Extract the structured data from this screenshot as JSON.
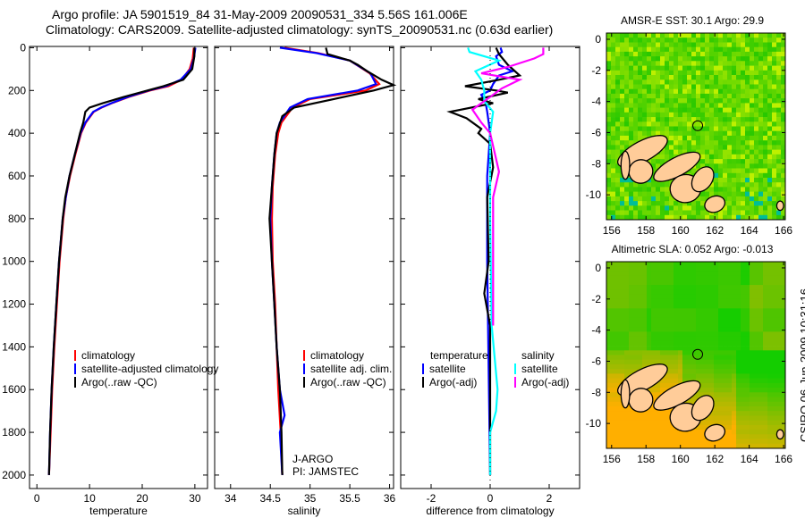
{
  "title_line1": "Argo profile: JA 5901519_84 31-May-2009 20090531_334 5.56S 161.006E",
  "title_line2": "Climatology: CARS2009. Satellite-adjusted climatology: synTS_20090531.nc (0.63d earlier)",
  "footer_stamp": "CSIRO 06-Jun-2009 10:31:16",
  "colors": {
    "climatology": "#ff0000",
    "satellite": "#0000ff",
    "argo": "#000000",
    "sal_satellite": "#00ffff",
    "sal_argo": "#ff00ff"
  },
  "chart_data": [
    {
      "type": "line",
      "xlabel": "temperature",
      "xlim": [
        -1.4,
        32.4
      ],
      "ylim": [
        -6,
        2063
      ],
      "y_inverted": true,
      "xticks": [
        0,
        10,
        20,
        30
      ],
      "yticks": [
        0,
        200,
        400,
        600,
        800,
        1000,
        1200,
        1400,
        1600,
        1800,
        2000
      ],
      "legend": [
        "climatology",
        "satellite-adjusted climatology",
        "Argo(..raw -QC)"
      ],
      "series": [
        {
          "name": "climatology",
          "color_key": "climatology",
          "points": [
            [
              29.8,
              0
            ],
            [
              29.6,
              50
            ],
            [
              29.0,
              100
            ],
            [
              27.5,
              150
            ],
            [
              25,
              180
            ],
            [
              21.5,
              200
            ],
            [
              17.5,
              230
            ],
            [
              14.2,
              260
            ],
            [
              12.3,
              280
            ],
            [
              10.8,
              300
            ],
            [
              9.3,
              350
            ],
            [
              8.4,
              400
            ],
            [
              7.3,
              500
            ],
            [
              6.3,
              600
            ],
            [
              5.5,
              700
            ],
            [
              5.0,
              800
            ],
            [
              4.3,
              1000
            ],
            [
              3.8,
              1200
            ],
            [
              3.3,
              1400
            ],
            [
              2.9,
              1600
            ],
            [
              2.6,
              1800
            ],
            [
              2.3,
              2000
            ]
          ]
        },
        {
          "name": "satellite-adjusted climatology",
          "color_key": "satellite",
          "points": [
            [
              30.1,
              0
            ],
            [
              29.8,
              50
            ],
            [
              29.2,
              100
            ],
            [
              27.3,
              150
            ],
            [
              24.5,
              180
            ],
            [
              21.2,
              200
            ],
            [
              17.3,
              230
            ],
            [
              14.1,
              260
            ],
            [
              12.2,
              280
            ],
            [
              10.7,
              300
            ],
            [
              9.2,
              350
            ],
            [
              8.3,
              400
            ],
            [
              7.2,
              500
            ],
            [
              6.2,
              600
            ],
            [
              5.5,
              700
            ],
            [
              4.9,
              800
            ],
            [
              4.2,
              1000
            ],
            [
              3.7,
              1200
            ],
            [
              3.2,
              1400
            ],
            [
              2.8,
              1600
            ],
            [
              2.5,
              1800
            ],
            [
              2.3,
              2000
            ]
          ]
        },
        {
          "name": "Argo(..raw -QC)",
          "color_key": "argo",
          "points": [
            [
              29.9,
              0
            ],
            [
              29.9,
              40
            ],
            [
              29.5,
              100
            ],
            [
              27.8,
              150
            ],
            [
              24,
              180
            ],
            [
              21,
              200
            ],
            [
              16.5,
              230
            ],
            [
              12.5,
              260
            ],
            [
              10.0,
              280
            ],
            [
              9.2,
              300
            ],
            [
              8.8,
              350
            ],
            [
              8.2,
              400
            ],
            [
              7.2,
              500
            ],
            [
              6.2,
              600
            ],
            [
              5.4,
              700
            ],
            [
              4.9,
              800
            ],
            [
              4.2,
              1000
            ],
            [
              3.7,
              1200
            ],
            [
              3.2,
              1400
            ],
            [
              2.8,
              1600
            ],
            [
              2.5,
              1800
            ],
            [
              2.3,
              2000
            ]
          ]
        }
      ]
    },
    {
      "type": "line",
      "xlabel": "salinity",
      "xlim": [
        33.8,
        36.05
      ],
      "ylim": [
        -6,
        2063
      ],
      "y_inverted": true,
      "xticks": [
        34,
        34.5,
        35,
        35.5,
        36
      ],
      "legend": [
        "climatology",
        "satellite adj. clim.",
        "Argo(..raw -QC)"
      ],
      "annotation": [
        "J-ARGO",
        "PI: JAMSTEC"
      ],
      "series": [
        {
          "name": "climatology",
          "color_key": "climatology",
          "points": [
            [
              34.68,
              0
            ],
            [
              35.1,
              25
            ],
            [
              35.5,
              60
            ],
            [
              35.75,
              120
            ],
            [
              35.87,
              170
            ],
            [
              35.7,
              200
            ],
            [
              35.0,
              240
            ],
            [
              34.78,
              280
            ],
            [
              34.64,
              350
            ],
            [
              34.6,
              400
            ],
            [
              34.56,
              500
            ],
            [
              34.53,
              650
            ],
            [
              34.52,
              800
            ],
            [
              34.53,
              1000
            ],
            [
              34.56,
              1200
            ],
            [
              34.58,
              1400
            ],
            [
              34.6,
              1600
            ],
            [
              34.63,
              1800
            ],
            [
              34.65,
              2000
            ]
          ]
        },
        {
          "name": "satellite adj. clim.",
          "color_key": "satellite",
          "points": [
            [
              34.62,
              0
            ],
            [
              35.08,
              25
            ],
            [
              35.5,
              60
            ],
            [
              35.76,
              120
            ],
            [
              35.83,
              170
            ],
            [
              35.6,
              200
            ],
            [
              34.97,
              240
            ],
            [
              34.75,
              280
            ],
            [
              34.62,
              350
            ],
            [
              34.58,
              400
            ],
            [
              34.55,
              500
            ],
            [
              34.52,
              650
            ],
            [
              34.5,
              800
            ],
            [
              34.52,
              1000
            ],
            [
              34.55,
              1200
            ],
            [
              34.58,
              1400
            ],
            [
              34.62,
              1600
            ],
            [
              34.68,
              1720
            ],
            [
              34.62,
              1800
            ],
            [
              34.65,
              2000
            ]
          ]
        },
        {
          "name": "Argo(..raw -QC)",
          "color_key": "argo",
          "points": [
            [
              35.2,
              0
            ],
            [
              35.22,
              30
            ],
            [
              35.5,
              60
            ],
            [
              35.6,
              80
            ],
            [
              35.72,
              110
            ],
            [
              35.9,
              150
            ],
            [
              36.05,
              175
            ],
            [
              35.8,
              200
            ],
            [
              35.3,
              240
            ],
            [
              34.8,
              280
            ],
            [
              34.65,
              320
            ],
            [
              34.58,
              400
            ],
            [
              34.55,
              500
            ],
            [
              34.52,
              650
            ],
            [
              34.49,
              800
            ],
            [
              34.52,
              1000
            ],
            [
              34.55,
              1200
            ],
            [
              34.58,
              1400
            ],
            [
              34.62,
              1600
            ],
            [
              34.64,
              1800
            ],
            [
              34.65,
              2000
            ]
          ]
        }
      ]
    },
    {
      "type": "line",
      "xlabel": "difference from climatology",
      "xlim": [
        -3.03,
        3.03
      ],
      "ylim": [
        -6,
        2063
      ],
      "y_inverted": true,
      "xticks": [
        -2,
        0,
        2
      ],
      "legend_groups": [
        {
          "heading": "temperature",
          "items": [
            "satellite",
            "Argo(-adj)"
          ]
        },
        {
          "heading": "salinity",
          "items": [
            "satellite",
            "Argo(-adj)"
          ]
        }
      ],
      "series": [
        {
          "name": "temperature satellite",
          "color_key": "satellite",
          "points": [
            [
              0.35,
              0
            ],
            [
              0.4,
              20
            ],
            [
              0.2,
              40
            ],
            [
              0.3,
              80
            ],
            [
              0.75,
              110
            ],
            [
              0.3,
              130
            ],
            [
              0.1,
              170
            ],
            [
              0.0,
              200
            ],
            [
              -0.3,
              220
            ],
            [
              -0.15,
              260
            ],
            [
              -0.1,
              300
            ],
            [
              0,
              400
            ],
            [
              -0.1,
              600
            ],
            [
              -0.1,
              1000
            ],
            [
              -0.05,
              1500
            ],
            [
              0,
              2000
            ]
          ]
        },
        {
          "name": "temperature Argo(-adj)",
          "color_key": "argo",
          "points": [
            [
              0.2,
              0
            ],
            [
              0.3,
              30
            ],
            [
              0.6,
              80
            ],
            [
              1.0,
              130
            ],
            [
              0.3,
              150
            ],
            [
              -0.85,
              180
            ],
            [
              0.2,
              200
            ],
            [
              0.6,
              210
            ],
            [
              -0.4,
              240
            ],
            [
              0.1,
              260
            ],
            [
              -1.36,
              300
            ],
            [
              -0.8,
              330
            ],
            [
              -0.3,
              380
            ],
            [
              -0.4,
              400
            ],
            [
              0,
              450
            ],
            [
              0.1,
              560
            ],
            [
              -0.1,
              700
            ],
            [
              -0.05,
              1000
            ],
            [
              -0.2,
              1150
            ],
            [
              0,
              1300
            ],
            [
              0,
              2000
            ]
          ]
        },
        {
          "name": "salinity satellite",
          "color_key": "sal_satellite",
          "points": [
            [
              -0.75,
              0
            ],
            [
              -0.7,
              20
            ],
            [
              0.3,
              60
            ],
            [
              -0.5,
              110
            ],
            [
              -0.3,
              150
            ],
            [
              -0.2,
              200
            ],
            [
              -0.2,
              250
            ],
            [
              0.1,
              300
            ],
            [
              0,
              400
            ],
            [
              0,
              800
            ],
            [
              0.05,
              1300
            ],
            [
              0.25,
              1600
            ],
            [
              0.2,
              1700
            ],
            [
              0,
              1800
            ],
            [
              0,
              2000
            ]
          ]
        },
        {
          "name": "salinity Argo(-adj)",
          "color_key": "sal_argo",
          "points": [
            [
              1.8,
              0
            ],
            [
              1.8,
              30
            ],
            [
              1.5,
              50
            ],
            [
              0.6,
              90
            ],
            [
              -0.3,
              120
            ],
            [
              1.0,
              150
            ],
            [
              0.4,
              190
            ],
            [
              0,
              230
            ],
            [
              -0.6,
              290
            ],
            [
              -0.3,
              350
            ],
            [
              0,
              400
            ],
            [
              0.3,
              580
            ],
            [
              0.1,
              700
            ],
            [
              0.1,
              1000
            ],
            [
              0.1,
              1300
            ]
          ]
        }
      ]
    },
    {
      "type": "heatmap",
      "title": "AMSR-E SST: 30.1 Argo: 29.9",
      "xlim": [
        155.7,
        166.1
      ],
      "ylim": [
        -11.6,
        0.4
      ],
      "xticks": [
        156,
        158,
        160,
        162,
        164,
        166
      ],
      "yticks": [
        0,
        -2,
        -4,
        -6,
        -8,
        -10
      ],
      "marker": {
        "lon": 161.006,
        "lat": -5.56
      }
    },
    {
      "type": "heatmap",
      "title": "Altimetric SLA: 0.052 Argo: -0.013",
      "xlim": [
        155.7,
        166.1
      ],
      "ylim": [
        -11.6,
        0.4
      ],
      "xticks": [
        156,
        158,
        160,
        162,
        164,
        166
      ],
      "yticks": [
        0,
        -2,
        -4,
        -6,
        -8,
        -10
      ],
      "marker": {
        "lon": 161.006,
        "lat": -5.56
      }
    }
  ]
}
